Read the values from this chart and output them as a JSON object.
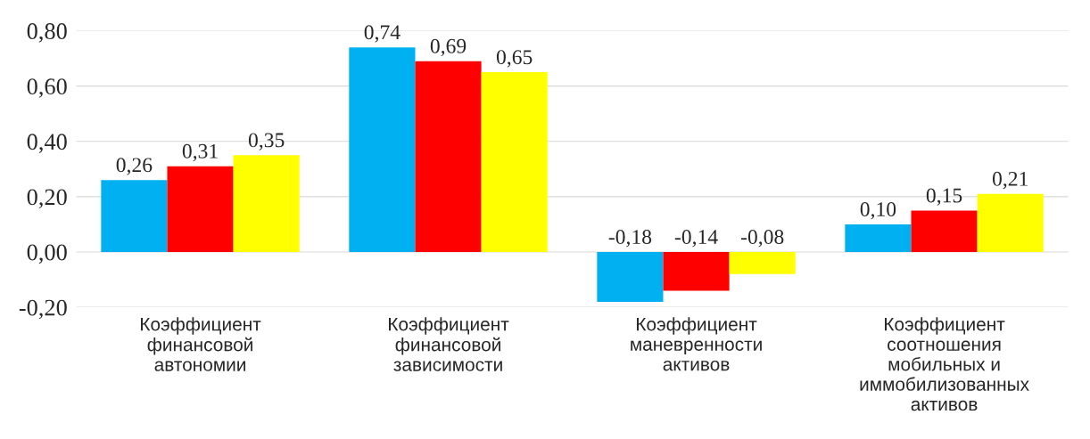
{
  "chart_data": {
    "type": "bar",
    "categories": [
      "Коэффициент\nфинансовой\nавтономии",
      "Коэффициент\nфинансовой\nзависимости",
      "Коэффициент\nманевренности\nактивов",
      "Коэффициент\nсоотношения\nмобильных и\nиммобилизованных\nактивов"
    ],
    "series": [
      {
        "color": "#00b0f0",
        "values": [
          0.26,
          0.74,
          -0.18,
          0.1
        ],
        "value_labels": [
          "0,26",
          "0,74",
          "-0,18",
          "0,10"
        ]
      },
      {
        "color": "#ff0000",
        "values": [
          0.31,
          0.69,
          -0.14,
          0.15
        ],
        "value_labels": [
          "0,31",
          "0,69",
          "-0,14",
          "0,15"
        ]
      },
      {
        "color": "#ffff00",
        "values": [
          0.35,
          0.65,
          -0.08,
          0.21
        ],
        "value_labels": [
          "0,35",
          "0,65",
          "-0,08",
          "0,21"
        ]
      }
    ],
    "ylim": [
      -0.2,
      0.8
    ],
    "yticks": [
      {
        "value": -0.2,
        "label": "-0,20"
      },
      {
        "value": 0,
        "label": "0,00"
      },
      {
        "value": 0.2,
        "label": "0,20"
      },
      {
        "value": 0.4,
        "label": "0,40"
      },
      {
        "value": 0.6,
        "label": "0,60"
      },
      {
        "value": 0.8,
        "label": "0,80"
      }
    ],
    "grid": "y",
    "legend": false
  }
}
